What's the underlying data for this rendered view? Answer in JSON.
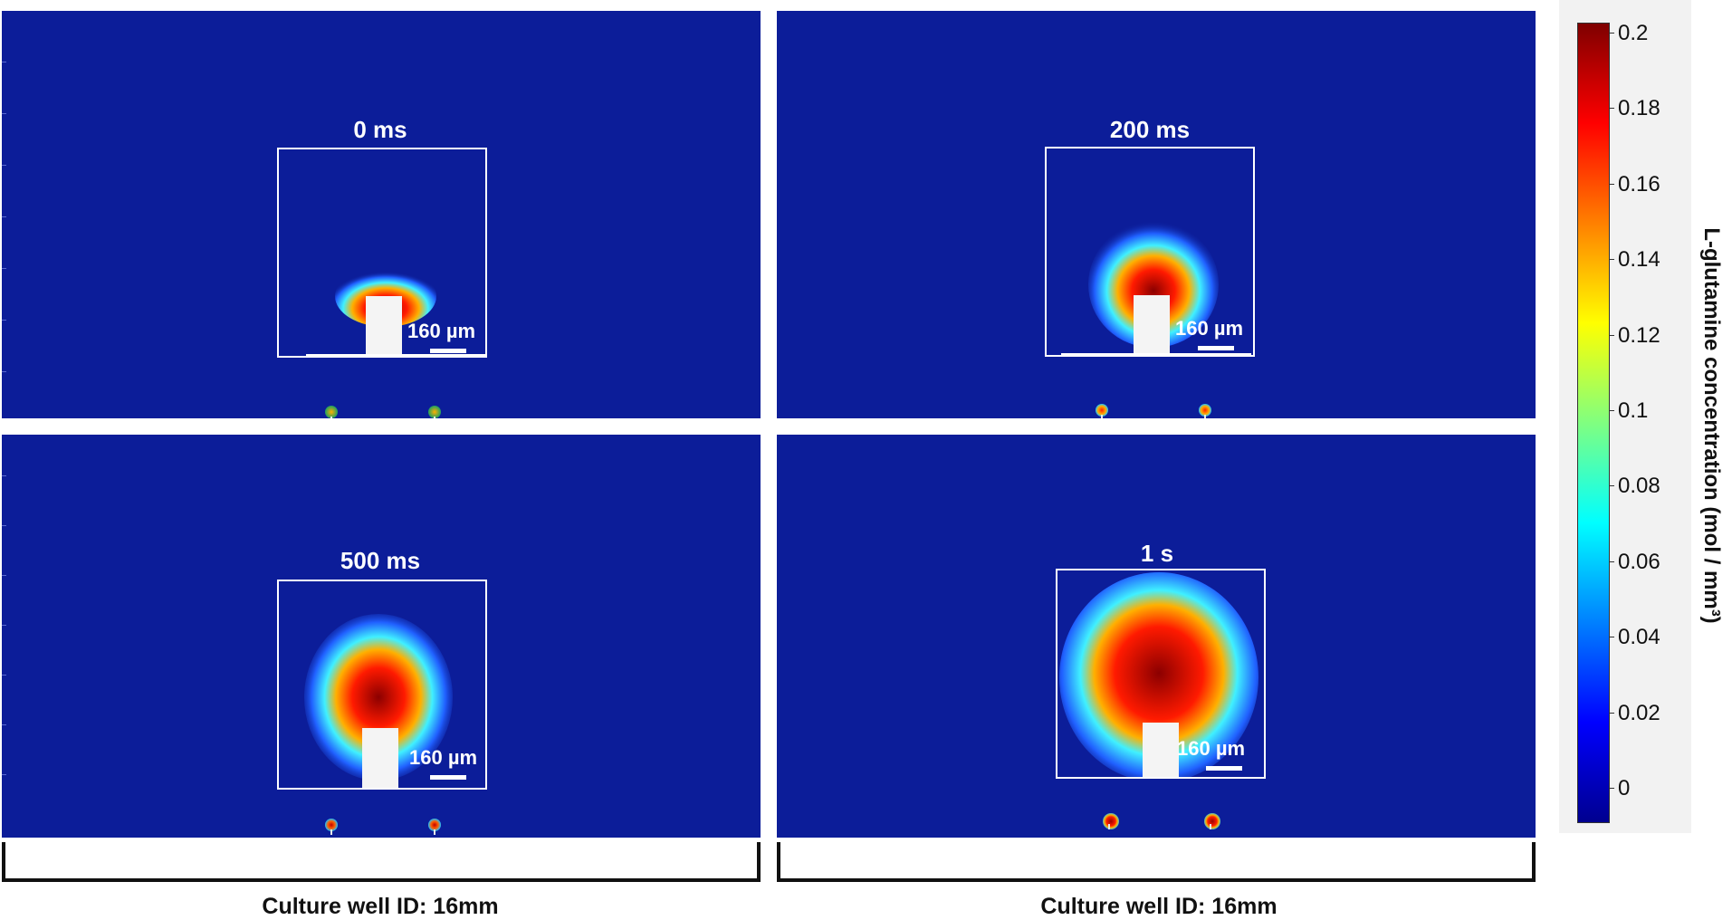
{
  "panels": [
    {
      "title": "0 ms",
      "scale": "160 µm",
      "plume": "small"
    },
    {
      "title": "200 ms",
      "scale": "160 µm",
      "plume": "medium"
    },
    {
      "title": "500 ms",
      "scale": "160 µm",
      "plume": "large"
    },
    {
      "title": "1 s",
      "scale": "160 µm",
      "plume": "xlarge"
    }
  ],
  "captions": {
    "left": "Culture well ID: 16mm",
    "right": "Culture well ID: 16mm"
  },
  "colorbar": {
    "label": "L-glutamine concentration (mol / mm³)",
    "ticks": [
      "0.2",
      "0.18",
      "0.16",
      "0.14",
      "0.12",
      "0.1",
      "0.08",
      "0.06",
      "0.04",
      "0.02",
      "0"
    ],
    "colors": [
      "#7f0000",
      "#ff0000",
      "#ff8000",
      "#ffff00",
      "#80ff80",
      "#00ffff",
      "#0080ff",
      "#0000ff",
      "#00008f"
    ]
  }
}
